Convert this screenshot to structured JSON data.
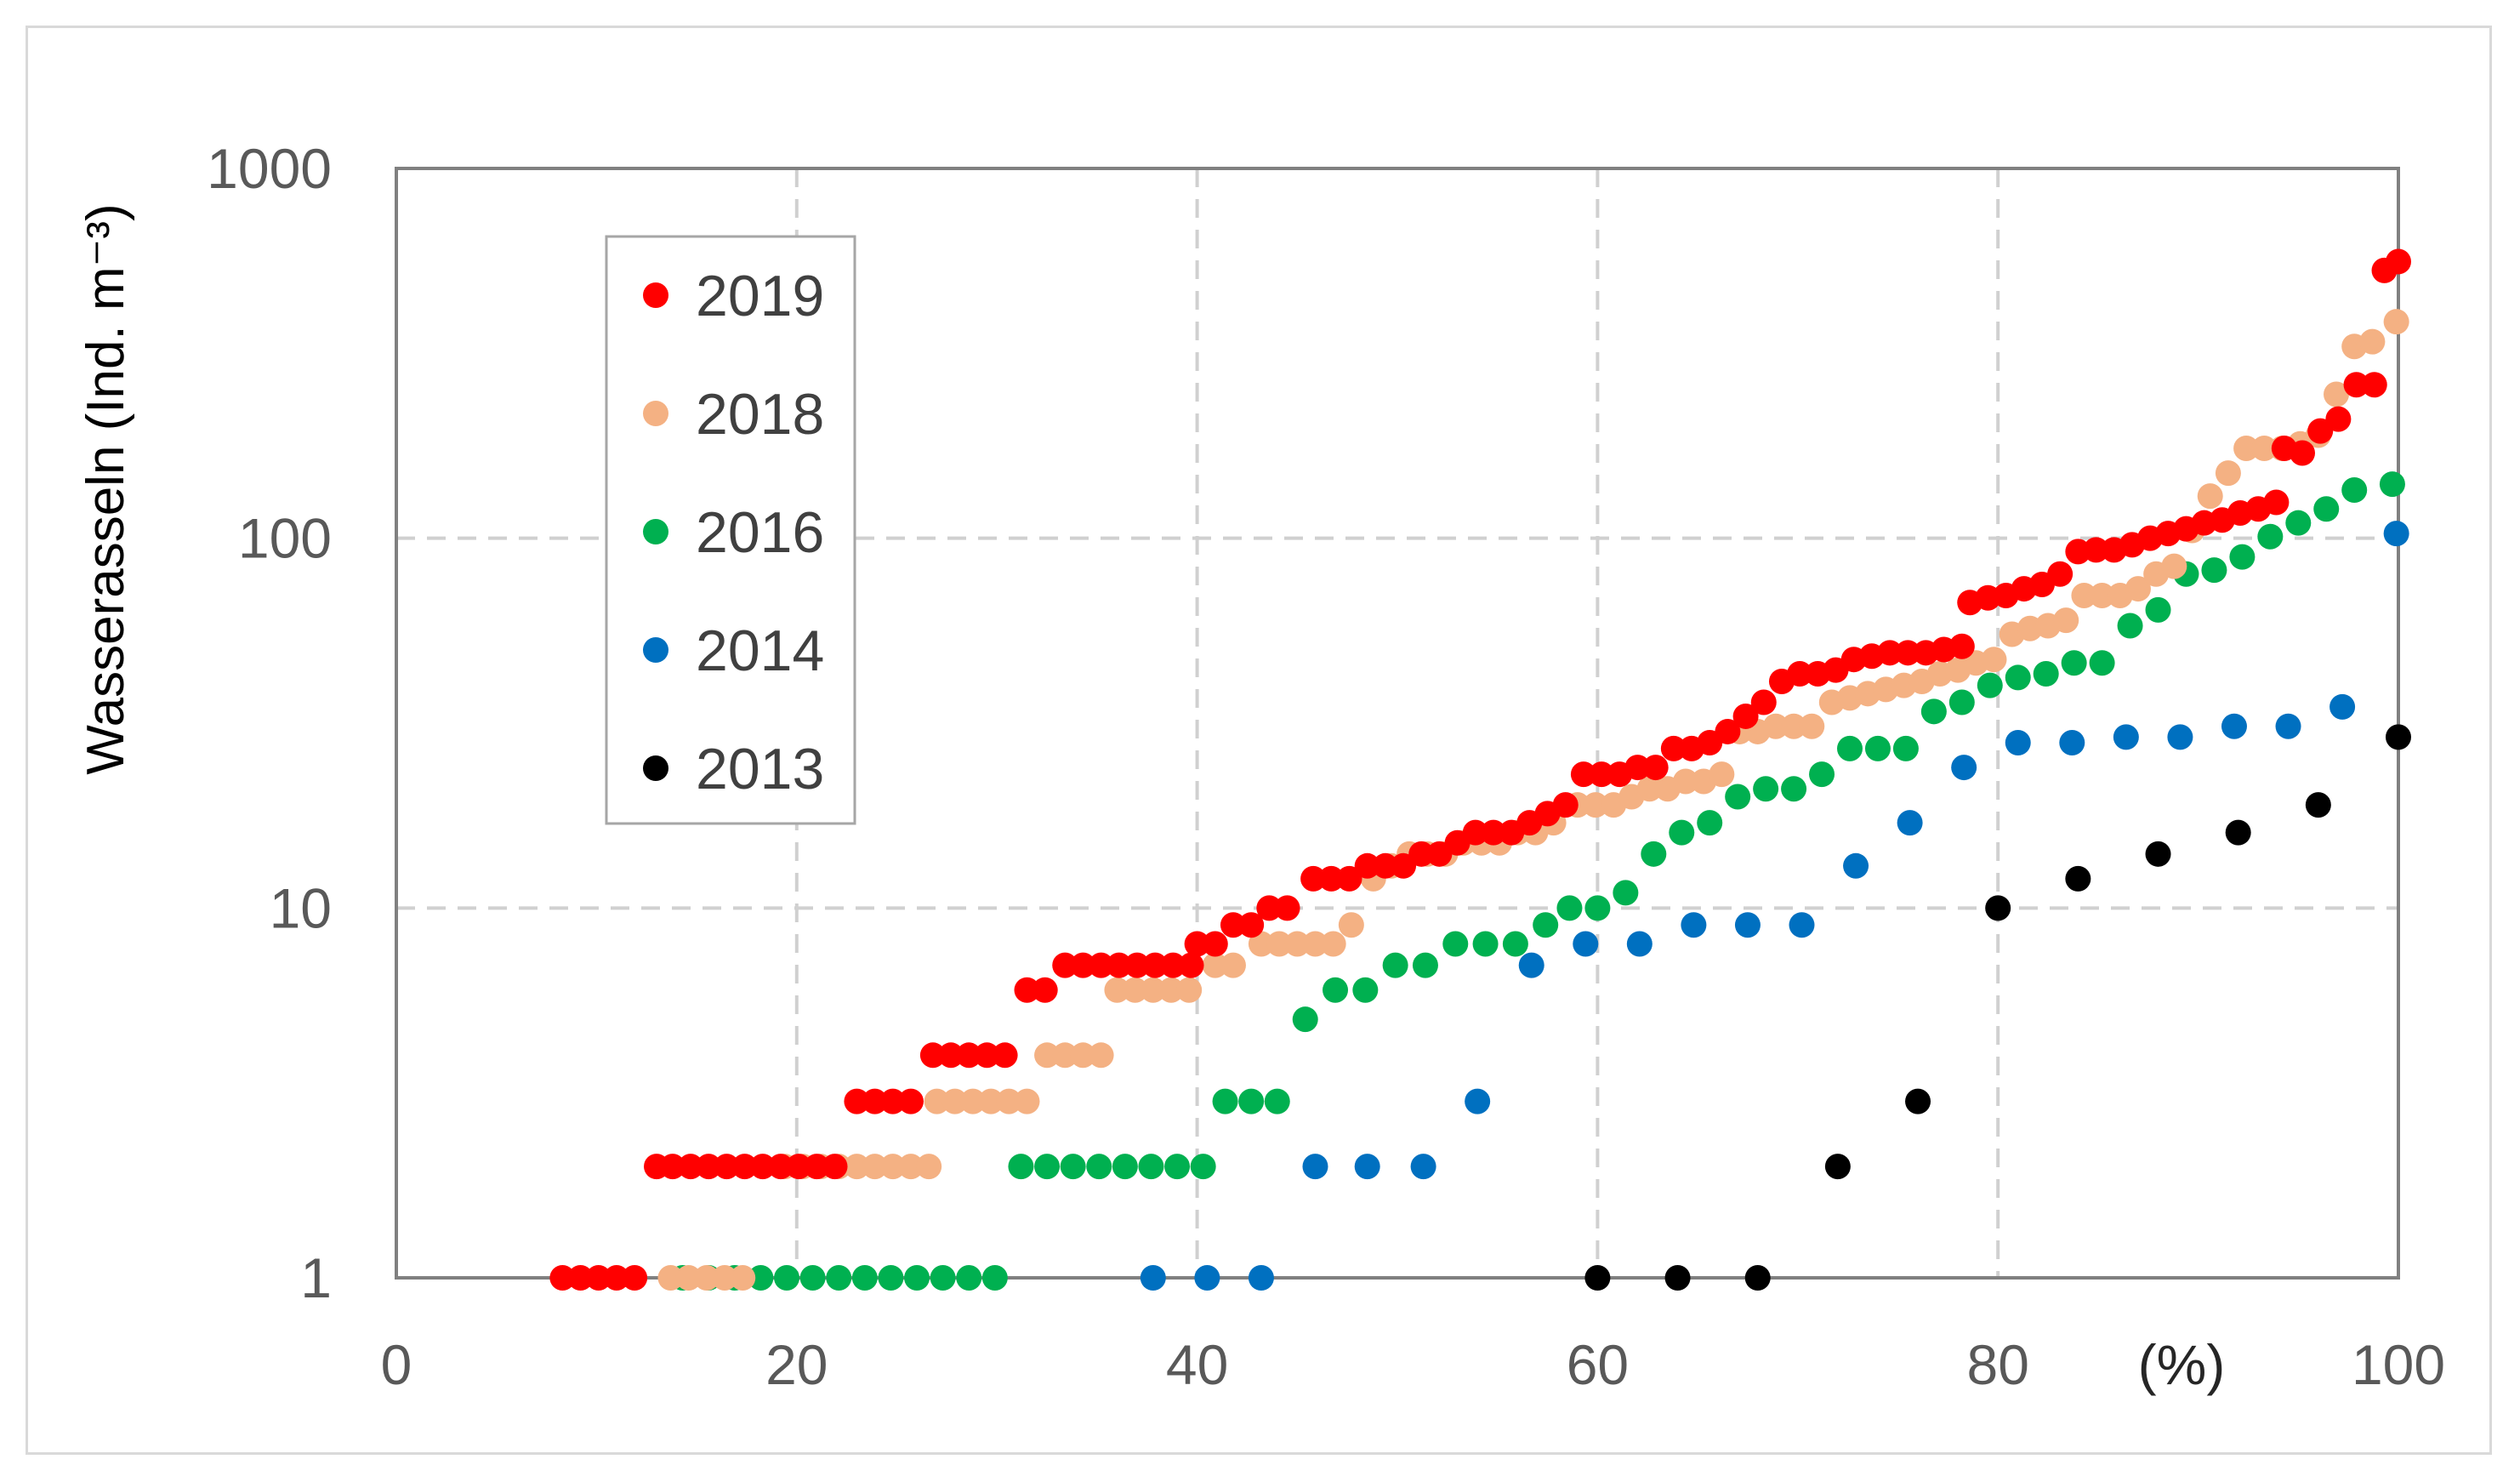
{
  "chart_data": {
    "type": "scatter",
    "ylabel": "Wasserasseln (Ind. m⁻³)",
    "xunit": "(%)",
    "xlim": [
      0,
      100
    ],
    "ylim": [
      1,
      1000
    ],
    "yscale": "log",
    "grid": true,
    "legend_position": "top-left",
    "x_ticks": [
      "0",
      "20",
      "40",
      "60",
      "80",
      "100"
    ],
    "y_ticks": [
      "1",
      "10",
      "100",
      "1000"
    ],
    "series": [
      {
        "name": "2019",
        "color": "#ff0000",
        "points": [
          [
            8.3,
            1
          ],
          [
            9.2,
            1
          ],
          [
            10.1,
            1
          ],
          [
            11.0,
            1
          ],
          [
            11.9,
            1
          ],
          [
            13.0,
            2
          ],
          [
            13.8,
            2
          ],
          [
            14.7,
            2
          ],
          [
            15.6,
            2
          ],
          [
            16.5,
            2
          ],
          [
            17.4,
            2
          ],
          [
            18.3,
            2
          ],
          [
            19.2,
            2
          ],
          [
            20.1,
            2
          ],
          [
            21.0,
            2
          ],
          [
            21.9,
            2
          ],
          [
            23.0,
            3
          ],
          [
            23.9,
            3
          ],
          [
            24.8,
            3
          ],
          [
            25.7,
            3
          ],
          [
            26.8,
            4
          ],
          [
            27.7,
            4
          ],
          [
            28.6,
            4
          ],
          [
            29.5,
            4
          ],
          [
            30.4,
            4
          ],
          [
            31.5,
            6
          ],
          [
            32.4,
            6
          ],
          [
            33.4,
            7
          ],
          [
            34.3,
            7
          ],
          [
            35.2,
            7
          ],
          [
            36.1,
            7
          ],
          [
            37.0,
            7
          ],
          [
            37.9,
            7
          ],
          [
            38.8,
            7
          ],
          [
            39.7,
            7
          ],
          [
            40.0,
            8
          ],
          [
            40.9,
            8
          ],
          [
            41.8,
            9
          ],
          [
            42.7,
            9
          ],
          [
            43.6,
            10
          ],
          [
            44.5,
            10
          ],
          [
            45.8,
            12
          ],
          [
            46.7,
            12
          ],
          [
            47.6,
            12
          ],
          [
            48.5,
            13
          ],
          [
            49.4,
            13
          ],
          [
            50.3,
            13
          ],
          [
            51.2,
            14
          ],
          [
            52.1,
            14
          ],
          [
            53.0,
            15
          ],
          [
            53.9,
            16
          ],
          [
            54.8,
            16
          ],
          [
            55.7,
            16
          ],
          [
            56.6,
            17
          ],
          [
            57.5,
            18
          ],
          [
            58.4,
            19
          ],
          [
            59.3,
            23
          ],
          [
            60.2,
            23
          ],
          [
            61.1,
            23
          ],
          [
            62.0,
            24
          ],
          [
            62.9,
            24
          ],
          [
            63.8,
            27
          ],
          [
            64.7,
            27
          ],
          [
            65.6,
            28
          ],
          [
            66.5,
            30
          ],
          [
            67.4,
            33
          ],
          [
            68.3,
            36
          ],
          [
            69.2,
            41
          ],
          [
            70.1,
            43
          ],
          [
            71.0,
            43
          ],
          [
            71.9,
            44
          ],
          [
            72.8,
            47
          ],
          [
            73.7,
            48
          ],
          [
            74.6,
            49
          ],
          [
            75.5,
            49
          ],
          [
            76.4,
            49
          ],
          [
            77.3,
            50
          ],
          [
            78.2,
            51
          ],
          [
            78.6,
            67
          ],
          [
            79.5,
            69
          ],
          [
            80.4,
            70
          ],
          [
            81.3,
            73
          ],
          [
            82.2,
            75
          ],
          [
            83.1,
            80
          ],
          [
            84.0,
            92
          ],
          [
            84.9,
            93
          ],
          [
            85.8,
            93
          ],
          [
            86.7,
            96
          ],
          [
            87.6,
            100
          ],
          [
            88.5,
            103
          ],
          [
            89.4,
            106
          ],
          [
            90.3,
            110
          ],
          [
            91.2,
            112
          ],
          [
            92.1,
            117
          ],
          [
            93.0,
            120
          ],
          [
            93.9,
            125
          ],
          [
            94.3,
            175
          ],
          [
            95.2,
            170
          ],
          [
            96.1,
            195
          ],
          [
            97.0,
            210
          ],
          [
            97.9,
            260
          ],
          [
            98.8,
            260
          ],
          [
            99.3,
            530
          ],
          [
            100.0,
            560
          ]
        ]
      },
      {
        "name": "2018",
        "color": "#f4b183",
        "points": [
          [
            13.7,
            1
          ],
          [
            14.6,
            1
          ],
          [
            15.5,
            1
          ],
          [
            16.4,
            1
          ],
          [
            17.3,
            1
          ],
          [
            19.4,
            2
          ],
          [
            20.3,
            2
          ],
          [
            21.2,
            2
          ],
          [
            22.1,
            2
          ],
          [
            23.0,
            2
          ],
          [
            23.9,
            2
          ],
          [
            24.8,
            2
          ],
          [
            25.7,
            2
          ],
          [
            26.6,
            2
          ],
          [
            27.0,
            3
          ],
          [
            27.9,
            3
          ],
          [
            28.8,
            3
          ],
          [
            29.7,
            3
          ],
          [
            30.6,
            3
          ],
          [
            31.5,
            3
          ],
          [
            32.5,
            4
          ],
          [
            33.4,
            4
          ],
          [
            34.3,
            4
          ],
          [
            35.2,
            4
          ],
          [
            36.0,
            6
          ],
          [
            36.9,
            6
          ],
          [
            37.8,
            6
          ],
          [
            38.7,
            6
          ],
          [
            39.6,
            6
          ],
          [
            40.9,
            7
          ],
          [
            41.8,
            7
          ],
          [
            43.2,
            8
          ],
          [
            44.1,
            8
          ],
          [
            45.0,
            8
          ],
          [
            45.9,
            8
          ],
          [
            46.8,
            8
          ],
          [
            47.7,
            9
          ],
          [
            48.8,
            12
          ],
          [
            49.7,
            13
          ],
          [
            50.6,
            14
          ],
          [
            51.5,
            14
          ],
          [
            52.4,
            14
          ],
          [
            53.3,
            15
          ],
          [
            54.2,
            15
          ],
          [
            55.1,
            15
          ],
          [
            56.0,
            16
          ],
          [
            56.9,
            16
          ],
          [
            57.8,
            17
          ],
          [
            59.0,
            19
          ],
          [
            59.9,
            19
          ],
          [
            60.8,
            19
          ],
          [
            61.7,
            20
          ],
          [
            62.6,
            21
          ],
          [
            63.5,
            21
          ],
          [
            64.4,
            22
          ],
          [
            65.3,
            22
          ],
          [
            66.2,
            23
          ],
          [
            67.1,
            30
          ],
          [
            68.0,
            30
          ],
          [
            68.9,
            31
          ],
          [
            69.8,
            31
          ],
          [
            70.7,
            31
          ],
          [
            71.7,
            36
          ],
          [
            72.6,
            37
          ],
          [
            73.5,
            38
          ],
          [
            74.4,
            39
          ],
          [
            75.3,
            40
          ],
          [
            76.2,
            41
          ],
          [
            77.1,
            43
          ],
          [
            78.0,
            44
          ],
          [
            78.9,
            46
          ],
          [
            79.8,
            47
          ],
          [
            80.7,
            55
          ],
          [
            81.6,
            57
          ],
          [
            82.5,
            58
          ],
          [
            83.4,
            60
          ],
          [
            84.3,
            70
          ],
          [
            85.2,
            70
          ],
          [
            86.1,
            70
          ],
          [
            87.0,
            73
          ],
          [
            87.9,
            80
          ],
          [
            88.8,
            84
          ],
          [
            89.7,
            105
          ],
          [
            90.6,
            130
          ],
          [
            91.5,
            150
          ],
          [
            92.4,
            175
          ],
          [
            93.3,
            175
          ],
          [
            94.2,
            175
          ],
          [
            95.1,
            180
          ],
          [
            96.0,
            190
          ],
          [
            96.9,
            245
          ],
          [
            97.8,
            330
          ],
          [
            98.7,
            340
          ],
          [
            99.9,
            385
          ]
        ]
      },
      {
        "name": "2016",
        "color": "#00b050",
        "points": [
          [
            14.3,
            1
          ],
          [
            15.6,
            1
          ],
          [
            16.9,
            1
          ],
          [
            18.2,
            1
          ],
          [
            19.5,
            1
          ],
          [
            20.8,
            1
          ],
          [
            22.1,
            1
          ],
          [
            23.4,
            1
          ],
          [
            24.7,
            1
          ],
          [
            26.0,
            1
          ],
          [
            27.3,
            1
          ],
          [
            28.6,
            1
          ],
          [
            29.9,
            1
          ],
          [
            31.2,
            2
          ],
          [
            32.5,
            2
          ],
          [
            33.8,
            2
          ],
          [
            35.1,
            2
          ],
          [
            36.4,
            2
          ],
          [
            37.7,
            2
          ],
          [
            39.0,
            2
          ],
          [
            40.3,
            2
          ],
          [
            41.4,
            3
          ],
          [
            42.7,
            3
          ],
          [
            44.0,
            3
          ],
          [
            45.4,
            5
          ],
          [
            46.9,
            6
          ],
          [
            48.4,
            6
          ],
          [
            49.9,
            7
          ],
          [
            51.4,
            7
          ],
          [
            52.9,
            8
          ],
          [
            54.4,
            8
          ],
          [
            55.9,
            8
          ],
          [
            57.4,
            9
          ],
          [
            58.6,
            10
          ],
          [
            60.0,
            10
          ],
          [
            61.4,
            11
          ],
          [
            62.8,
            14
          ],
          [
            64.2,
            16
          ],
          [
            65.6,
            17
          ],
          [
            67.0,
            20
          ],
          [
            68.4,
            21
          ],
          [
            69.8,
            21
          ],
          [
            71.2,
            23
          ],
          [
            72.6,
            27
          ],
          [
            74.0,
            27
          ],
          [
            75.4,
            27
          ],
          [
            76.8,
            34
          ],
          [
            78.2,
            36
          ],
          [
            79.6,
            40
          ],
          [
            81.0,
            42
          ],
          [
            82.4,
            43
          ],
          [
            83.8,
            46
          ],
          [
            85.2,
            46
          ],
          [
            86.6,
            58
          ],
          [
            88.0,
            64
          ],
          [
            89.4,
            80
          ],
          [
            90.8,
            82
          ],
          [
            92.2,
            89
          ],
          [
            93.6,
            101
          ],
          [
            95.0,
            110
          ],
          [
            96.4,
            120
          ],
          [
            97.8,
            135
          ],
          [
            99.7,
            140
          ]
        ]
      },
      {
        "name": "2014",
        "color": "#0070c0",
        "points": [
          [
            37.8,
            1
          ],
          [
            40.5,
            1
          ],
          [
            43.2,
            1
          ],
          [
            45.9,
            2
          ],
          [
            48.5,
            2
          ],
          [
            51.3,
            2
          ],
          [
            54.0,
            3
          ],
          [
            56.7,
            7
          ],
          [
            59.4,
            8
          ],
          [
            62.1,
            8
          ],
          [
            64.8,
            9
          ],
          [
            67.5,
            9
          ],
          [
            70.2,
            9
          ],
          [
            72.9,
            13
          ],
          [
            75.6,
            17
          ],
          [
            78.3,
            24
          ],
          [
            81.0,
            28
          ],
          [
            83.7,
            28
          ],
          [
            86.4,
            29
          ],
          [
            89.1,
            29
          ],
          [
            91.8,
            31
          ],
          [
            94.5,
            31
          ],
          [
            97.2,
            35
          ],
          [
            99.9,
            103
          ]
        ]
      },
      {
        "name": "2013",
        "color": "#000000",
        "points": [
          [
            60.0,
            1
          ],
          [
            64.0,
            1
          ],
          [
            68.0,
            1
          ],
          [
            72.0,
            2
          ],
          [
            76.0,
            3
          ],
          [
            80.0,
            10
          ],
          [
            84.0,
            12
          ],
          [
            88.0,
            14
          ],
          [
            92.0,
            16
          ],
          [
            96.0,
            19
          ],
          [
            100.0,
            29
          ]
        ]
      }
    ]
  }
}
